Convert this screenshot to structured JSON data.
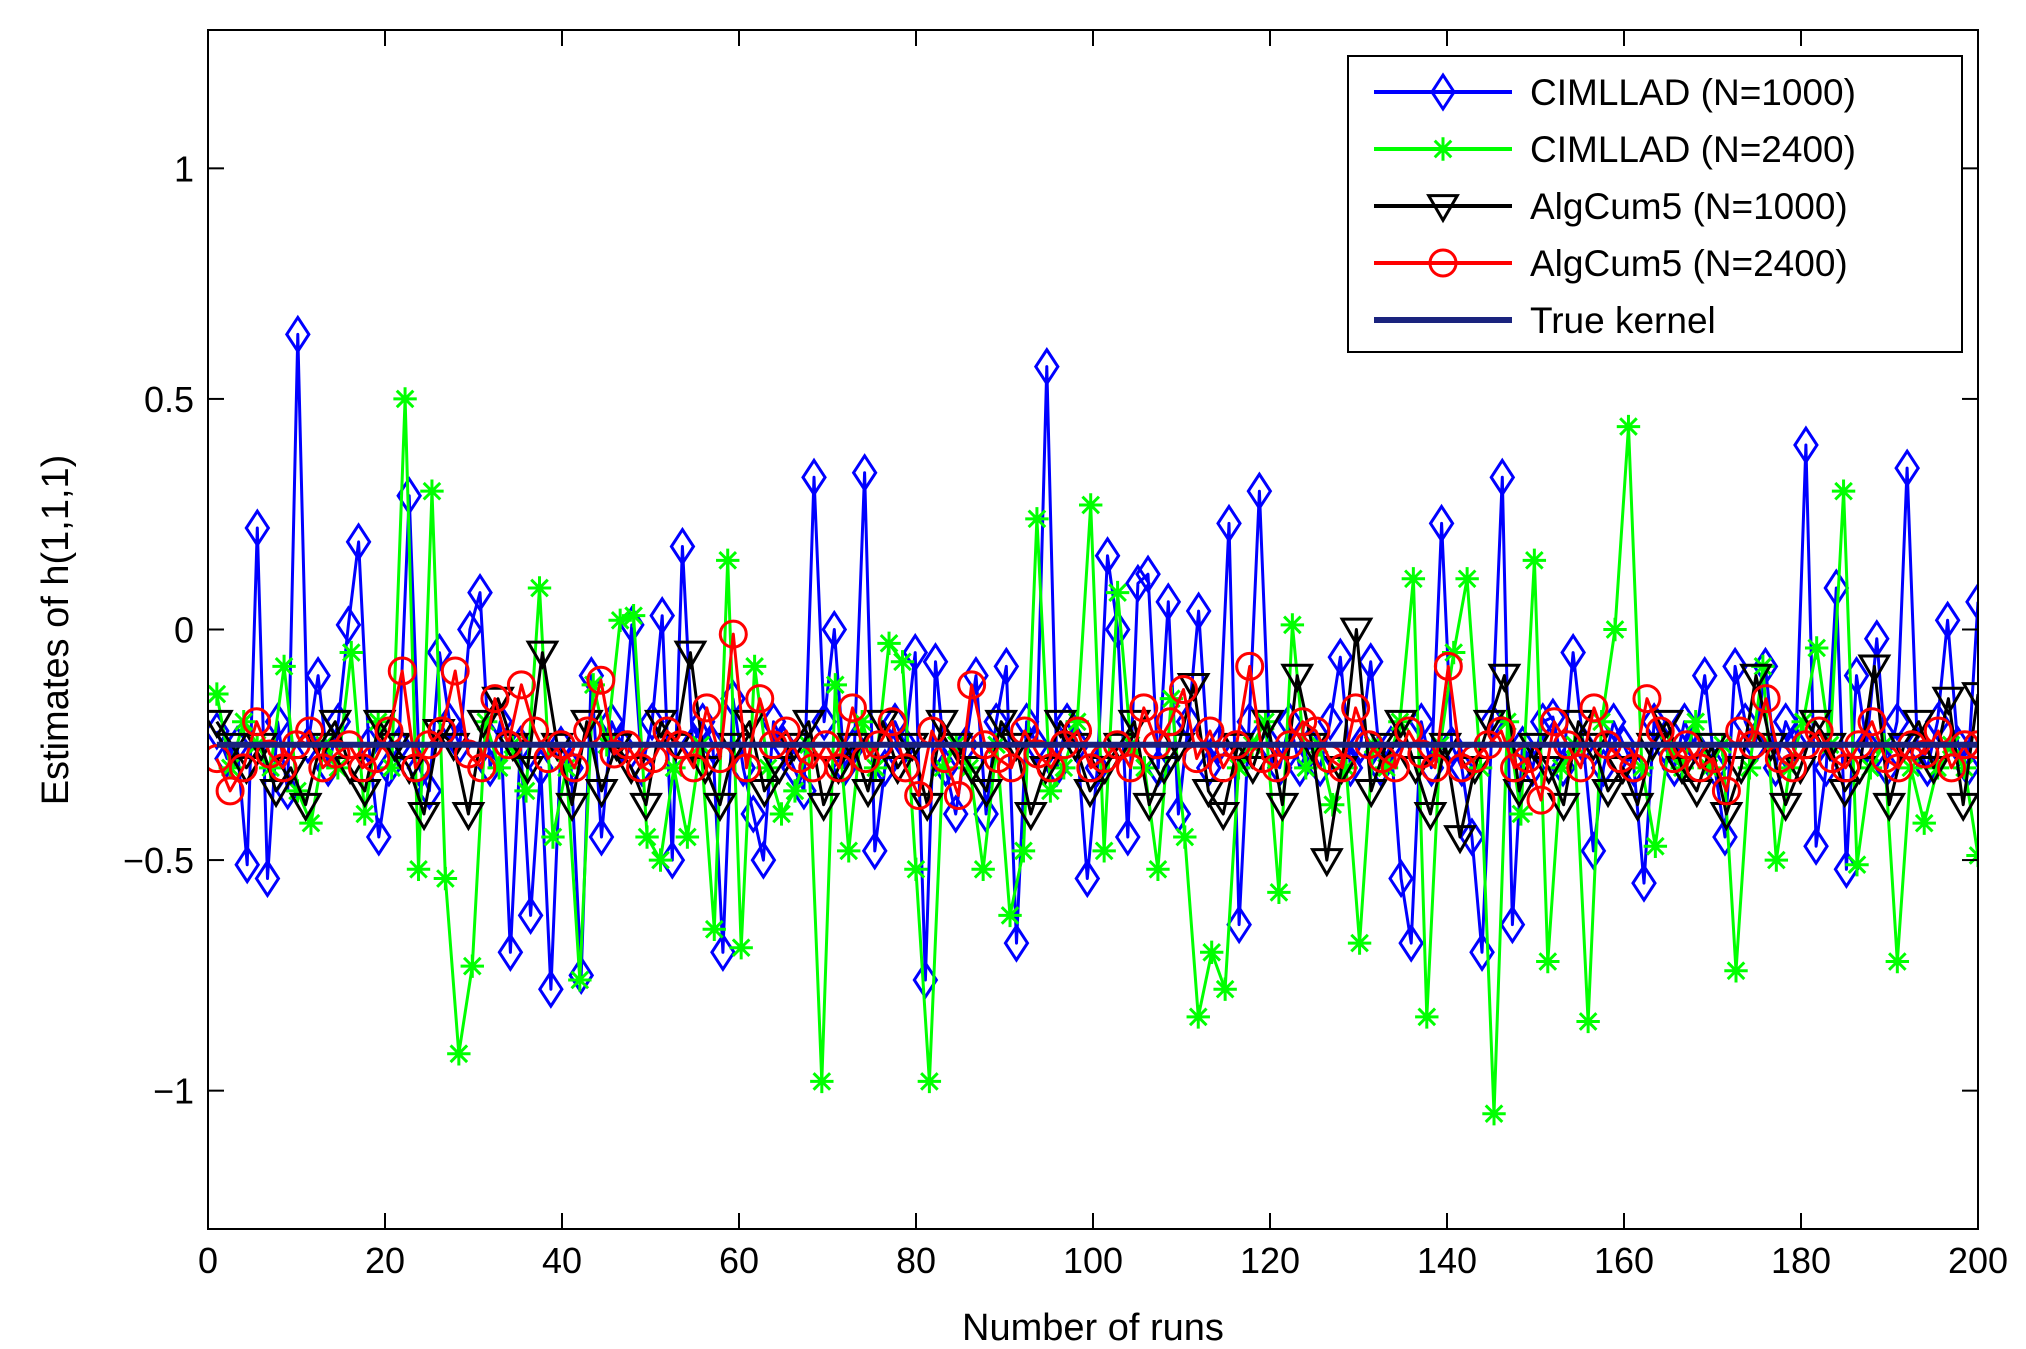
{
  "chart_data": {
    "type": "line",
    "title": "",
    "xlabel": "Number of runs",
    "ylabel": "Estimates of h(1,1,1)",
    "xlim": [
      0,
      200
    ],
    "ylim": [
      -1.3,
      1.3
    ],
    "grid": false,
    "legend_position": "top-right",
    "x_ticks": [
      0,
      20,
      40,
      60,
      80,
      100,
      120,
      140,
      160,
      180,
      200
    ],
    "x_tick_labels": [
      "0",
      "20",
      "40",
      "60",
      "80",
      "100",
      "120",
      "140",
      "160",
      "180",
      "200"
    ],
    "y_ticks": [
      -1,
      -0.5,
      0,
      0.5,
      1
    ],
    "y_tick_labels": [
      "−1",
      "−0.5",
      "0",
      "0.5",
      "1"
    ],
    "series": [
      {
        "name": "CIMLLAD (N=1000)",
        "color": "#0000ff",
        "marker": "diamond",
        "values": [
          -0.22,
          -0.28,
          -0.25,
          -0.51,
          0.22,
          -0.54,
          -0.2,
          -0.35,
          0.64,
          -0.25,
          -0.1,
          -0.3,
          -0.2,
          0.01,
          0.19,
          -0.25,
          -0.45,
          -0.3,
          -0.25,
          0.29,
          -0.3,
          -0.35,
          -0.05,
          -0.2,
          -0.25,
          0.0,
          0.08,
          -0.3,
          -0.2,
          -0.7,
          -0.25,
          -0.62,
          -0.3,
          -0.78,
          -0.25,
          -0.3,
          -0.75,
          -0.1,
          -0.45,
          -0.2,
          -0.25,
          0.01,
          -0.3,
          -0.2,
          0.03,
          -0.5,
          0.18,
          -0.25,
          -0.2,
          -0.25,
          -0.7,
          -0.15,
          -0.3,
          -0.4,
          -0.5,
          -0.2,
          -0.25,
          -0.3,
          -0.35,
          0.33,
          -0.2,
          0.0,
          -0.3,
          -0.25,
          0.34,
          -0.48,
          -0.3,
          -0.2,
          -0.25,
          -0.05,
          -0.76,
          -0.07,
          -0.3,
          -0.4,
          -0.25,
          -0.1,
          -0.4,
          -0.2,
          -0.08,
          -0.68,
          -0.2,
          -0.25,
          0.57,
          -0.3,
          -0.2,
          -0.25,
          -0.54,
          -0.3,
          0.16,
          0.0,
          -0.45,
          0.1,
          0.12,
          -0.3,
          0.06,
          -0.4,
          -0.2,
          0.04,
          -0.3,
          -0.25,
          0.23,
          -0.64,
          -0.2,
          0.3,
          -0.25,
          -0.3,
          -0.2,
          -0.3,
          -0.25,
          -0.3,
          -0.2,
          -0.06,
          -0.3,
          -0.25,
          -0.07,
          -0.3,
          -0.25,
          -0.54,
          -0.68,
          -0.2,
          -0.3,
          0.23,
          -0.25,
          -0.3,
          -0.45,
          -0.7,
          -0.2,
          0.33,
          -0.64,
          -0.25,
          -0.3,
          -0.2,
          -0.19,
          -0.3,
          -0.05,
          -0.25,
          -0.48,
          -0.3,
          -0.2,
          -0.25,
          -0.3,
          -0.55,
          -0.2,
          -0.25,
          -0.3,
          -0.2,
          -0.25,
          -0.1,
          -0.3,
          -0.45,
          -0.08,
          -0.2,
          -0.25,
          -0.08,
          -0.3,
          -0.2,
          -0.25,
          0.4,
          -0.47,
          -0.3,
          0.09,
          -0.52,
          -0.1,
          -0.25,
          -0.02,
          -0.3,
          -0.2,
          0.35,
          -0.25,
          -0.3,
          -0.2,
          0.02,
          -0.25,
          -0.3,
          0.06
        ]
      },
      {
        "name": "CIMLLAD (N=2400)",
        "color": "#00ff00",
        "marker": "star",
        "values": [
          -0.14,
          -0.3,
          -0.2,
          -0.25,
          -0.3,
          -0.08,
          -0.35,
          -0.42,
          -0.25,
          -0.3,
          -0.05,
          -0.4,
          -0.2,
          -0.3,
          0.5,
          -0.52,
          0.3,
          -0.54,
          -0.92,
          -0.73,
          -0.2,
          -0.3,
          -0.25,
          -0.35,
          0.09,
          -0.45,
          -0.3,
          -0.76,
          -0.12,
          -0.25,
          0.02,
          0.03,
          -0.45,
          -0.5,
          -0.3,
          -0.45,
          -0.25,
          -0.65,
          0.15,
          -0.69,
          -0.08,
          -0.3,
          -0.4,
          -0.35,
          -0.25,
          -0.98,
          -0.12,
          -0.48,
          -0.2,
          -0.3,
          -0.03,
          -0.07,
          -0.52,
          -0.98,
          -0.3,
          -0.25,
          -0.3,
          -0.52,
          -0.25,
          -0.62,
          -0.48,
          0.24,
          -0.35,
          -0.3,
          -0.2,
          0.27,
          -0.48,
          0.08,
          -0.25,
          -0.3,
          -0.52,
          -0.15,
          -0.45,
          -0.84,
          -0.7,
          -0.78,
          -0.3,
          -0.25,
          -0.2,
          -0.57,
          0.01,
          -0.3,
          -0.25,
          -0.38,
          -0.3,
          -0.68,
          -0.25,
          -0.3,
          -0.2,
          0.11,
          -0.84,
          -0.25,
          -0.05,
          0.11,
          -0.3,
          -1.05,
          -0.2,
          -0.4,
          0.15,
          -0.72,
          -0.3,
          -0.25,
          -0.85,
          -0.2,
          0.0,
          0.44,
          -0.3,
          -0.47,
          -0.25,
          -0.3,
          -0.2,
          -0.3,
          -0.25,
          -0.74,
          -0.3,
          -0.08,
          -0.5,
          -0.3,
          -0.2,
          -0.04,
          -0.25,
          0.3,
          -0.51,
          -0.3,
          -0.25,
          -0.72,
          -0.3,
          -0.42,
          -0.3,
          -0.25,
          -0.3,
          -0.49
        ]
      },
      {
        "name": "AlgCum5 (N=1000)",
        "color": "#000000",
        "marker": "triangle-down",
        "values": [
          -0.2,
          -0.25,
          -0.3,
          -0.25,
          -0.35,
          -0.3,
          -0.38,
          -0.25,
          -0.2,
          -0.3,
          -0.35,
          -0.2,
          -0.25,
          -0.3,
          -0.4,
          -0.22,
          -0.25,
          -0.4,
          -0.2,
          -0.15,
          -0.25,
          -0.3,
          -0.05,
          -0.25,
          -0.38,
          -0.2,
          -0.35,
          -0.25,
          -0.3,
          -0.38,
          -0.2,
          -0.25,
          -0.05,
          -0.3,
          -0.38,
          -0.25,
          -0.2,
          -0.35,
          -0.3,
          -0.25,
          -0.2,
          -0.38,
          -0.3,
          -0.25,
          -0.35,
          -0.2,
          -0.3,
          -0.25,
          -0.38,
          -0.2,
          -0.25,
          -0.3,
          -0.35,
          -0.2,
          -0.25,
          -0.4,
          -0.3,
          -0.2,
          -0.25,
          -0.35,
          -0.3,
          -0.25,
          -0.2,
          -0.38,
          -0.3,
          -0.25,
          -0.12,
          -0.35,
          -0.4,
          -0.25,
          -0.3,
          -0.2,
          -0.38,
          -0.1,
          -0.25,
          -0.5,
          -0.3,
          -0.0,
          -0.35,
          -0.25,
          -0.2,
          -0.3,
          -0.4,
          -0.25,
          -0.45,
          -0.3,
          -0.2,
          -0.1,
          -0.35,
          -0.25,
          -0.3,
          -0.38,
          -0.2,
          -0.25,
          -0.35,
          -0.3,
          -0.38,
          -0.25,
          -0.2,
          -0.3,
          -0.35,
          -0.25,
          -0.4,
          -0.3,
          -0.1,
          -0.25,
          -0.38,
          -0.3,
          -0.2,
          -0.25,
          -0.35,
          -0.3,
          -0.08,
          -0.38,
          -0.25,
          -0.2,
          -0.3,
          -0.15,
          -0.38,
          -0.14
        ]
      },
      {
        "name": "AlgCum5 (N=2400)",
        "color": "#ff0000",
        "marker": "circle",
        "values": [
          -0.28,
          -0.35,
          -0.3,
          -0.2,
          -0.27,
          -0.3,
          -0.25,
          -0.22,
          -0.3,
          -0.27,
          -0.25,
          -0.3,
          -0.28,
          -0.22,
          -0.09,
          -0.3,
          -0.25,
          -0.22,
          -0.09,
          -0.27,
          -0.3,
          -0.15,
          -0.25,
          -0.12,
          -0.22,
          -0.28,
          -0.25,
          -0.3,
          -0.22,
          -0.11,
          -0.27,
          -0.25,
          -0.3,
          -0.28,
          -0.22,
          -0.25,
          -0.3,
          -0.17,
          -0.28,
          -0.01,
          -0.3,
          -0.15,
          -0.25,
          -0.22,
          -0.28,
          -0.3,
          -0.25,
          -0.3,
          -0.17,
          -0.28,
          -0.25,
          -0.2,
          -0.3,
          -0.36,
          -0.22,
          -0.28,
          -0.36,
          -0.12,
          -0.25,
          -0.28,
          -0.3,
          -0.22,
          -0.27,
          -0.3,
          -0.25,
          -0.22,
          -0.3,
          -0.28,
          -0.25,
          -0.3,
          -0.17,
          -0.25,
          -0.2,
          -0.13,
          -0.28,
          -0.22,
          -0.3,
          -0.25,
          -0.08,
          -0.28,
          -0.3,
          -0.25,
          -0.2,
          -0.22,
          -0.28,
          -0.3,
          -0.17,
          -0.25,
          -0.28,
          -0.3,
          -0.22,
          -0.27,
          -0.3,
          -0.08,
          -0.3,
          -0.28,
          -0.25,
          -0.22,
          -0.3,
          -0.28,
          -0.37,
          -0.2,
          -0.25,
          -0.3,
          -0.17,
          -0.25,
          -0.28,
          -0.3,
          -0.15,
          -0.22,
          -0.28,
          -0.25,
          -0.3,
          -0.28,
          -0.35,
          -0.22,
          -0.25,
          -0.15,
          -0.28,
          -0.3,
          -0.25,
          -0.22,
          -0.28,
          -0.3,
          -0.25,
          -0.2,
          -0.28,
          -0.3,
          -0.25,
          -0.27,
          -0.22,
          -0.3,
          -0.25,
          -0.25
        ]
      },
      {
        "name": "True kernel",
        "color": "#1a237e",
        "marker": "none",
        "values": [
          -0.25,
          -0.25
        ]
      }
    ]
  }
}
